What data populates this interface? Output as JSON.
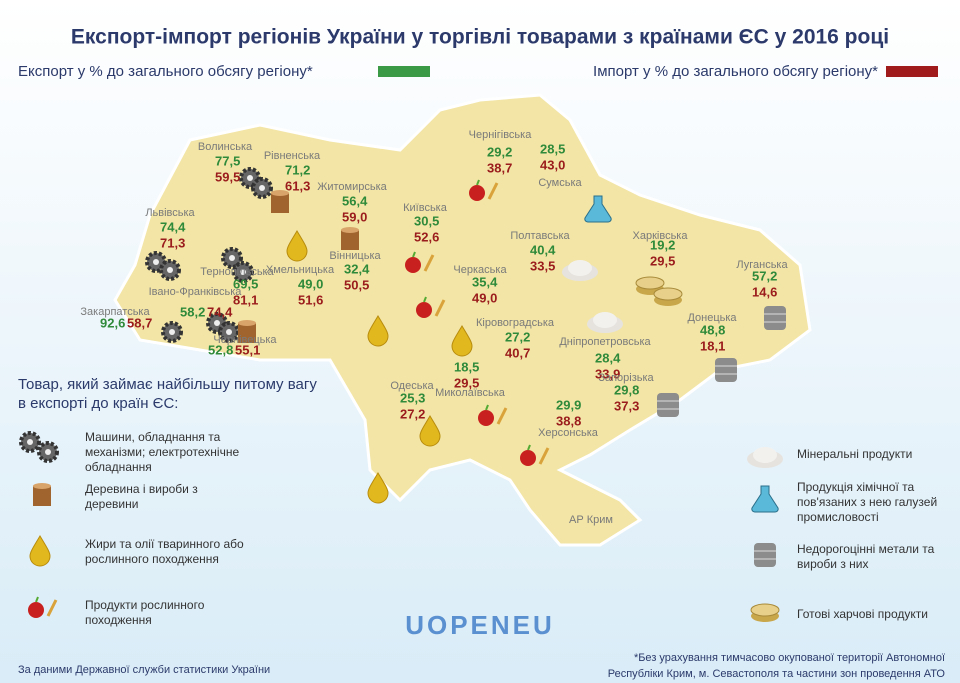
{
  "title": "Експорт-імпорт регіонів України у торгівлі товарами з країнами ЄС у 2016 році",
  "legend": {
    "export": "Експорт у % до загального обсягу регіону*",
    "import": "Імпорт у % до загального обсягу регіону*"
  },
  "regions": [
    {
      "name": "Волинська",
      "export": "77,5",
      "import": "59,5"
    },
    {
      "name": "Рівненська",
      "export": "71,2",
      "import": "61,3"
    },
    {
      "name": "Житомирська",
      "export": "56,4",
      "import": "59,0"
    },
    {
      "name": "Київська",
      "export": "30,5",
      "import": "52,6"
    },
    {
      "name": "Чернігівська",
      "export": "29,2",
      "import": "38,7"
    },
    {
      "name": "Сумська",
      "export": "28,5",
      "import": "43,0"
    },
    {
      "name": "Львівська",
      "export": "74,4",
      "import": "71,3"
    },
    {
      "name": "Тернопільська",
      "export": "69,5",
      "import": "81,1"
    },
    {
      "name": "Хмельницька",
      "export": "49,0",
      "import": "51,6"
    },
    {
      "name": "Вінницька",
      "export": "32,4",
      "import": "50,5"
    },
    {
      "name": "Закарпатська",
      "export": "92,6",
      "import": "58,7"
    },
    {
      "name": "Івано-Франківська",
      "export": "58,2",
      "import": "74,4"
    },
    {
      "name": "Чернівецька",
      "export": "52,8",
      "import": "55,1"
    },
    {
      "name": "Черкаська",
      "export": "35,4",
      "import": "49,0"
    },
    {
      "name": "Полтавська",
      "export": "40,4",
      "import": "33,5"
    },
    {
      "name": "Харківська",
      "export": "19,2",
      "import": "29,5"
    },
    {
      "name": "Луганська",
      "export": "57,2",
      "import": "14,6"
    },
    {
      "name": "Донецька",
      "export": "48,8",
      "import": "18,1"
    },
    {
      "name": "Дніпропетровська",
      "export": "28,4",
      "import": "33,9"
    },
    {
      "name": "Кіровоградська",
      "export": "27,2",
      "import": "40,7"
    },
    {
      "name": "Запорізька",
      "export": "29,8",
      "import": "37,3"
    },
    {
      "name": "Одеська",
      "export": "25,3",
      "import": "27,2"
    },
    {
      "name": "Миколаївська",
      "export": "18,5",
      "import": "29,5"
    },
    {
      "name": "Херсонська",
      "export": "29,9",
      "import": "38,8"
    }
  ],
  "crimea": "АР Крим",
  "key": {
    "title": [
      "Товар, який займає найбільшу питому вагу",
      "в експорті до країн ЄС:"
    ],
    "items": [
      [
        "Машини, обладнання та",
        "механізми; електротехнічне",
        "обладнання"
      ],
      [
        "Деревина і вироби з",
        "деревини"
      ],
      [
        "Жири та олії тваринного або",
        "рослинного походження"
      ],
      [
        "Продукти рослинного",
        "походження"
      ]
    ]
  },
  "key_right": [
    [
      "Мінеральні продукти"
    ],
    [
      "Продукція хімічної та",
      "пов'язаних з нею галузей",
      "промисловості"
    ],
    [
      "Недорогоцінні метали та",
      "вироби з них"
    ],
    [
      "Готові харчові продукти"
    ]
  ],
  "logo": "UOPENEU",
  "source": "За даними Державної служби статистики України",
  "footnote": [
    "*Без урахування тимчасово окупованої території Автономної",
    "Республіки Крим, м. Севастополя та частини зон проведення АТО"
  ]
}
